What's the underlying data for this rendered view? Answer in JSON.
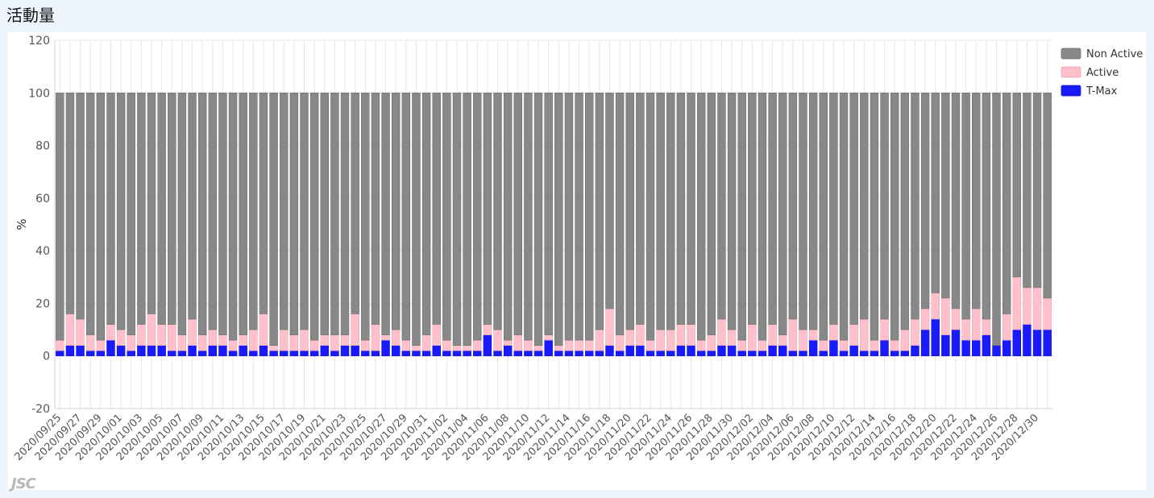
{
  "page": {
    "title": "活動量"
  },
  "logo": {
    "text": "JSC"
  },
  "colors": {
    "non_active": "#888888",
    "active": "#ffc0cb",
    "tmax": "#1a1aff",
    "grid": "#e6e6e6",
    "axis_text": "#555555"
  },
  "chart_data": {
    "type": "bar",
    "stacked": true,
    "ylabel": "%",
    "ylim": [
      -20,
      120
    ],
    "yticks": [
      -20,
      0,
      20,
      40,
      60,
      80,
      100,
      120
    ],
    "grid": true,
    "legend_position": "top-right",
    "categories": [
      "2020/09/25",
      "2020/09/26",
      "2020/09/27",
      "2020/09/28",
      "2020/09/29",
      "2020/09/30",
      "2020/10/01",
      "2020/10/02",
      "2020/10/03",
      "2020/10/04",
      "2020/10/05",
      "2020/10/06",
      "2020/10/07",
      "2020/10/08",
      "2020/10/09",
      "2020/10/10",
      "2020/10/11",
      "2020/10/12",
      "2020/10/13",
      "2020/10/14",
      "2020/10/15",
      "2020/10/16",
      "2020/10/17",
      "2020/10/18",
      "2020/10/19",
      "2020/10/20",
      "2020/10/21",
      "2020/10/22",
      "2020/10/23",
      "2020/10/24",
      "2020/10/25",
      "2020/10/26",
      "2020/10/27",
      "2020/10/28",
      "2020/10/29",
      "2020/10/30",
      "2020/10/31",
      "2020/11/01",
      "2020/11/02",
      "2020/11/03",
      "2020/11/04",
      "2020/11/05",
      "2020/11/06",
      "2020/11/07",
      "2020/11/08",
      "2020/11/09",
      "2020/11/10",
      "2020/11/11",
      "2020/11/12",
      "2020/11/13",
      "2020/11/14",
      "2020/11/15",
      "2020/11/16",
      "2020/11/17",
      "2020/11/18",
      "2020/11/19",
      "2020/11/20",
      "2020/11/21",
      "2020/11/22",
      "2020/11/23",
      "2020/11/24",
      "2020/11/25",
      "2020/11/26",
      "2020/11/27",
      "2020/11/28",
      "2020/11/29",
      "2020/11/30",
      "2020/12/01",
      "2020/12/02",
      "2020/12/03",
      "2020/12/04",
      "2020/12/05",
      "2020/12/06",
      "2020/12/07",
      "2020/12/08",
      "2020/12/09",
      "2020/12/10",
      "2020/12/11",
      "2020/12/12",
      "2020/12/13",
      "2020/12/14",
      "2020/12/15",
      "2020/12/16",
      "2020/12/17",
      "2020/12/18",
      "2020/12/19",
      "2020/12/20",
      "2020/12/21",
      "2020/12/22",
      "2020/12/23",
      "2020/12/24",
      "2020/12/25",
      "2020/12/26",
      "2020/12/27",
      "2020/12/28",
      "2020/12/29",
      "2020/12/30",
      "2020/12/31"
    ],
    "series": [
      {
        "name": "T-Max",
        "values": [
          2,
          4,
          4,
          2,
          2,
          6,
          4,
          2,
          4,
          4,
          4,
          2,
          2,
          4,
          2,
          4,
          4,
          2,
          4,
          2,
          4,
          2,
          2,
          2,
          2,
          2,
          4,
          2,
          4,
          4,
          2,
          2,
          6,
          4,
          2,
          2,
          2,
          4,
          2,
          2,
          2,
          2,
          8,
          2,
          4,
          2,
          2,
          2,
          6,
          2,
          2,
          2,
          2,
          2,
          4,
          2,
          4,
          4,
          2,
          2,
          2,
          4,
          4,
          2,
          2,
          4,
          4,
          2,
          2,
          2,
          4,
          4,
          2,
          2,
          6,
          2,
          6,
          2,
          4,
          2,
          2,
          6,
          2,
          2,
          4,
          10,
          14,
          8,
          10,
          6,
          6,
          8,
          4,
          6,
          10,
          12,
          10,
          10
        ]
      },
      {
        "name": "Active",
        "values": [
          4,
          12,
          10,
          6,
          4,
          6,
          6,
          6,
          8,
          12,
          8,
          10,
          6,
          10,
          6,
          6,
          4,
          4,
          4,
          8,
          12,
          2,
          8,
          6,
          8,
          4,
          4,
          6,
          4,
          12,
          4,
          10,
          2,
          6,
          4,
          2,
          6,
          8,
          4,
          2,
          2,
          4,
          4,
          8,
          2,
          6,
          4,
          2,
          2,
          2,
          4,
          4,
          4,
          8,
          14,
          6,
          6,
          8,
          4,
          8,
          8,
          8,
          8,
          4,
          6,
          10,
          6,
          4,
          10,
          4,
          8,
          4,
          12,
          8,
          4,
          4,
          6,
          4,
          8,
          12,
          4,
          8,
          4,
          8,
          10,
          8,
          10,
          14,
          8,
          8,
          12,
          6,
          0,
          10,
          20,
          14,
          16,
          12
        ]
      },
      {
        "name": "Non Active",
        "values": [
          94,
          84,
          86,
          92,
          94,
          88,
          90,
          92,
          88,
          84,
          88,
          88,
          92,
          86,
          92,
          90,
          92,
          94,
          92,
          90,
          84,
          96,
          90,
          92,
          90,
          94,
          92,
          92,
          92,
          84,
          94,
          88,
          92,
          90,
          94,
          96,
          92,
          88,
          94,
          96,
          96,
          94,
          88,
          90,
          94,
          92,
          94,
          96,
          92,
          96,
          94,
          94,
          94,
          90,
          82,
          92,
          90,
          88,
          94,
          90,
          90,
          88,
          88,
          94,
          92,
          86,
          90,
          94,
          88,
          94,
          88,
          92,
          86,
          90,
          90,
          94,
          88,
          94,
          88,
          86,
          94,
          86,
          94,
          90,
          86,
          82,
          76,
          78,
          82,
          86,
          82,
          86,
          96,
          84,
          70,
          74,
          74,
          78
        ]
      }
    ],
    "legend": [
      "Non Active",
      "Active",
      "T-Max"
    ]
  }
}
